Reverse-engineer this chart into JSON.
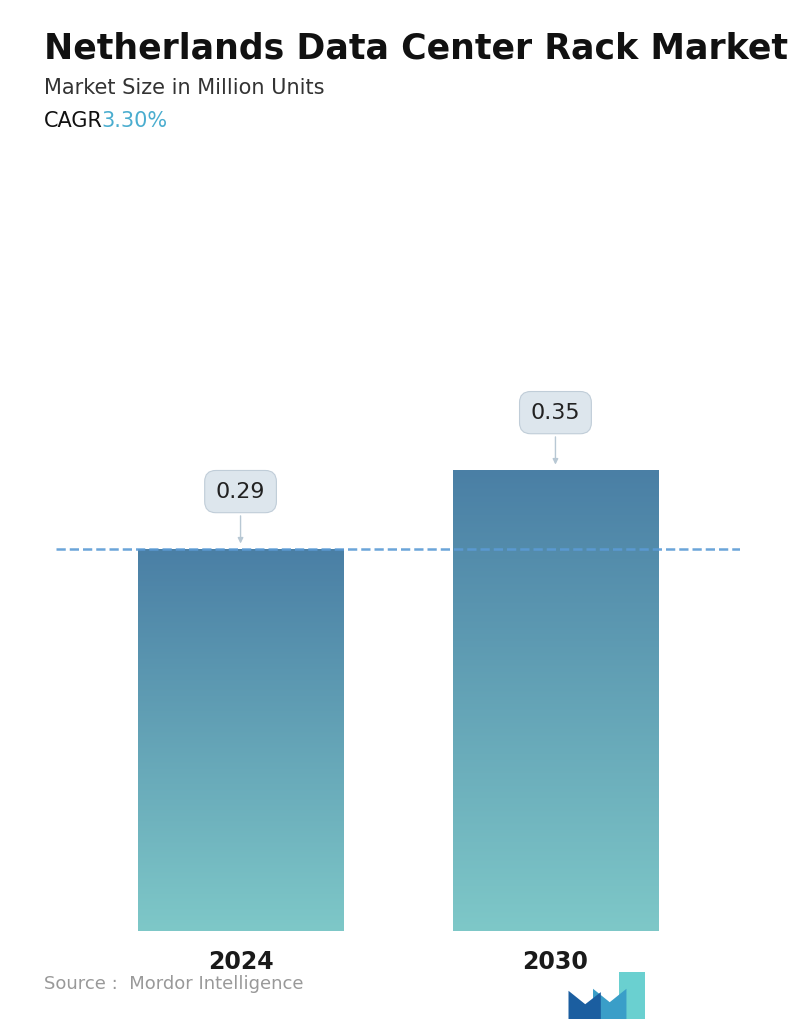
{
  "title": "Netherlands Data Center Rack Market",
  "subtitle": "Market Size in Million Units",
  "cagr_label": "CAGR",
  "cagr_value": "3.30%",
  "cagr_color": "#4AADCF",
  "categories": [
    "2024",
    "2030"
  ],
  "values": [
    0.29,
    0.35
  ],
  "bar_top_color": "#4A7FA5",
  "bar_bottom_color": "#7EC8C8",
  "dashed_line_y": 0.29,
  "dashed_line_color": "#5B9BD5",
  "ylim": [
    0,
    0.44
  ],
  "source_text": "Source :  Mordor Intelligence",
  "background_color": "#FFFFFF",
  "title_fontsize": 25,
  "subtitle_fontsize": 15,
  "cagr_fontsize": 15,
  "label_fontsize": 16,
  "tick_fontsize": 17,
  "source_fontsize": 13,
  "bar_positions": [
    0.27,
    0.73
  ],
  "bar_width": 0.3
}
